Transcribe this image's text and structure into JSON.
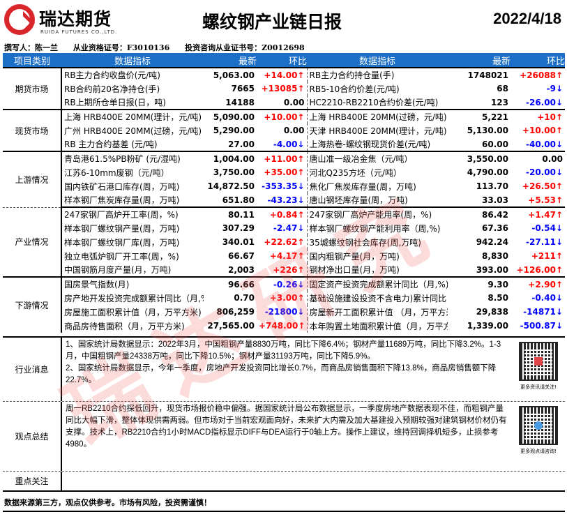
{
  "header": {
    "logo_cn": "瑞达期货",
    "logo_en": "RUIDA FUTURES CO.,LTD.",
    "title": "螺纹钢产业链日报",
    "date": "2022/4/18"
  },
  "authors": {
    "writer": "撰写人：陈一兰",
    "license": "从业资格证号：F3010136",
    "consult": "投资咨询从业证书号：Z0012698"
  },
  "watermark": "瑞达研究",
  "columns": [
    "项目类别",
    "数据指标",
    "最新",
    "环比",
    "数据指标",
    "最新",
    "环比"
  ],
  "groups": [
    {
      "category": "期货市场",
      "rows": [
        [
          "RB主力合约收盘价(元/吨)",
          "5,063.00",
          "+14.00↑",
          "up",
          "RB主力合约持仓量(手)",
          "1748021",
          "+26088↑",
          "up"
        ],
        [
          "RB合约前20名净持仓(手)",
          "7665",
          "+13085↑",
          "up",
          "RB5-10合约价差(元/吨)",
          "68",
          "-9↓",
          "down"
        ],
        [
          "RB上期所仓单日报(日，吨)",
          "14188",
          "0.00",
          "flat",
          "HC2210-RB2210合约价差(元/吨)",
          "123",
          "-26.00↓",
          "down"
        ]
      ]
    },
    {
      "category": "现货市场",
      "rows": [
        [
          "上海 HRB400E 20MM(理计，元/吨)",
          "5,090.00",
          "+10.00↑",
          "up",
          "上海 HRB400E 20MM(过磅，元/吨)",
          "5,221",
          "+10↑",
          "up"
        ],
        [
          "广州 HRB400E 20MM(过磅，元/吨)",
          "5,290.00",
          "0.00",
          "flat",
          "天津 HRB400E 20MM(理计，元/吨)",
          "5,130.00",
          "+10.00↑",
          "up"
        ],
        [
          "RB 主力合约基差 (元/吨)",
          "27.00",
          "-4.00↓",
          "down",
          "上海热卷-螺纹钢现货价差(元/吨)",
          "60.00",
          "-40.00↓",
          "down"
        ]
      ]
    },
    {
      "category": "上游情况",
      "rows": [
        [
          "青岛港61.5%PB粉矿 (元/湿吨)",
          "1,004.00",
          "+11.00↑",
          "up",
          "唐山准一级冶金焦（元/吨）",
          "3,550.00",
          "0.00",
          "flat"
        ],
        [
          "江苏6-10mm废钢（元/吨）",
          "3,750.00",
          "+35.00↑",
          "up",
          "河北Q235方坯（元/吨）",
          "4,790.00",
          "-20.00↓",
          "down"
        ],
        [
          "国内铁矿石港口库存(周，万吨)",
          "14,872.50",
          "-353.35↓",
          "down",
          "焦化厂焦炭库存量(周，万吨)",
          "113.70",
          "+26.50↑",
          "up"
        ],
        [
          "样本钢厂焦炭库存量(周，万吨)",
          "651.80",
          "-43.23↓",
          "down",
          "唐山钢坯库存量(周，万吨)",
          "33.03",
          "+5.53↑",
          "up"
        ]
      ]
    },
    {
      "category": "产业情况",
      "rows": [
        [
          "247家钢厂高炉开工率(周，%)",
          "80.11",
          "+0.84↑",
          "up",
          "247家钢厂高炉产能用率(周，%)",
          "86.42",
          "+1.47↑",
          "up"
        ],
        [
          "样本钢厂螺纹钢产量(周，万吨)",
          "307.29",
          "-2.47↓",
          "down",
          "样本钢厂螺纹钢产能利用率（周,%)",
          "67.36",
          "-0.54↓",
          "down"
        ],
        [
          "样本钢厂螺纹钢厂库(周，万吨)",
          "340.01",
          "+22.62↑",
          "up",
          "35城螺纹钢社会库存(周,万吨)",
          "942.24",
          "-27.11↓",
          "down"
        ],
        [
          "独立电弧炉钢厂开工率(周，%)",
          "66.67",
          "+4.17↑",
          "up",
          "国内粗钢产量(月，万吨)",
          "8,830",
          "+211↑",
          "up"
        ],
        [
          "中国钢筋月度产量(月，万吨)",
          "2,003",
          "+226↑",
          "up",
          "钢材净出口量(月，万吨)",
          "393.00",
          "+126.00↑",
          "up"
        ]
      ]
    },
    {
      "category": "下游情况",
      "rows": [
        [
          "国房景气指数(月)",
          "96.66",
          "-0.26↓",
          "down",
          "固定资产投资完成额累计同比（月,%)",
          "9.30",
          "+2.90↑",
          "up"
        ],
        [
          "房产地开发投资完成额累计同比（月,%",
          "0.70",
          "+3.00↑",
          "up",
          "基础设施建设投资不含电力)累计同比（月",
          "8.50",
          "-0.40↓",
          "down"
        ],
        [
          "房屋施工面积累计值（月，万平方米)",
          "806,259",
          "-21800↓",
          "down",
          "房屋新开工面积累计值 （月，万平方米)",
          "29,838",
          "-14871↓",
          "down"
        ],
        [
          "商品房待售面积（月，万平方米)",
          "27,565.00",
          "+748.00↑",
          "up",
          "本年购置土地面积累计值（月，万平方米",
          "1,339.00",
          "-500.87↓",
          "down"
        ]
      ]
    }
  ],
  "news": {
    "label": "行业消息",
    "text": "1、国家统计局数据显示：2022年3月，中国粗钢产量8830万吨，同比下降6.4%；钢材产量11689万吨，同比下降3.2%。1-3月，中国粗钢产量24338万吨，同比下降10.5%；钢材产量31193万吨，同比下降5.9%。\n2、国家统计局数据显示，今年一季度，房地产开发投资同比增长0.7%，而商品房销售面积下降13.8%，商品房销售额下降22.7%。",
    "qr_caption": "更多资讯请关注!"
  },
  "view": {
    "label": "观点总结",
    "text": "周一RB2210合约探低回升，现货市场报价稳中偏强。据国家统计局公布数据显示，一季度房地产数据表现不佳，而粗钢产量同比大幅下滑，整体体现供需两弱。但市场对于当前宏观面向好，未来扩大内需及加大基建投入预期较强对建筑钢材价材仍有支撑。技术上，RB2210合约1小时MACD指标显示DIFF与DEA运行于0轴上方。操作上建议，维持回调择机短多，止损参考4980。",
    "qr_caption": "更多观点请咨询!"
  },
  "focus": {
    "label": "重点关注",
    "text": ""
  },
  "footer": "数据来源第三方，观点仅供参考。市场有风险，投资需谨慎！",
  "colors": {
    "header_blue": "#1b6fc6",
    "up": "#ff0000",
    "down": "#0000ff",
    "brand_red": "#d9262b"
  }
}
